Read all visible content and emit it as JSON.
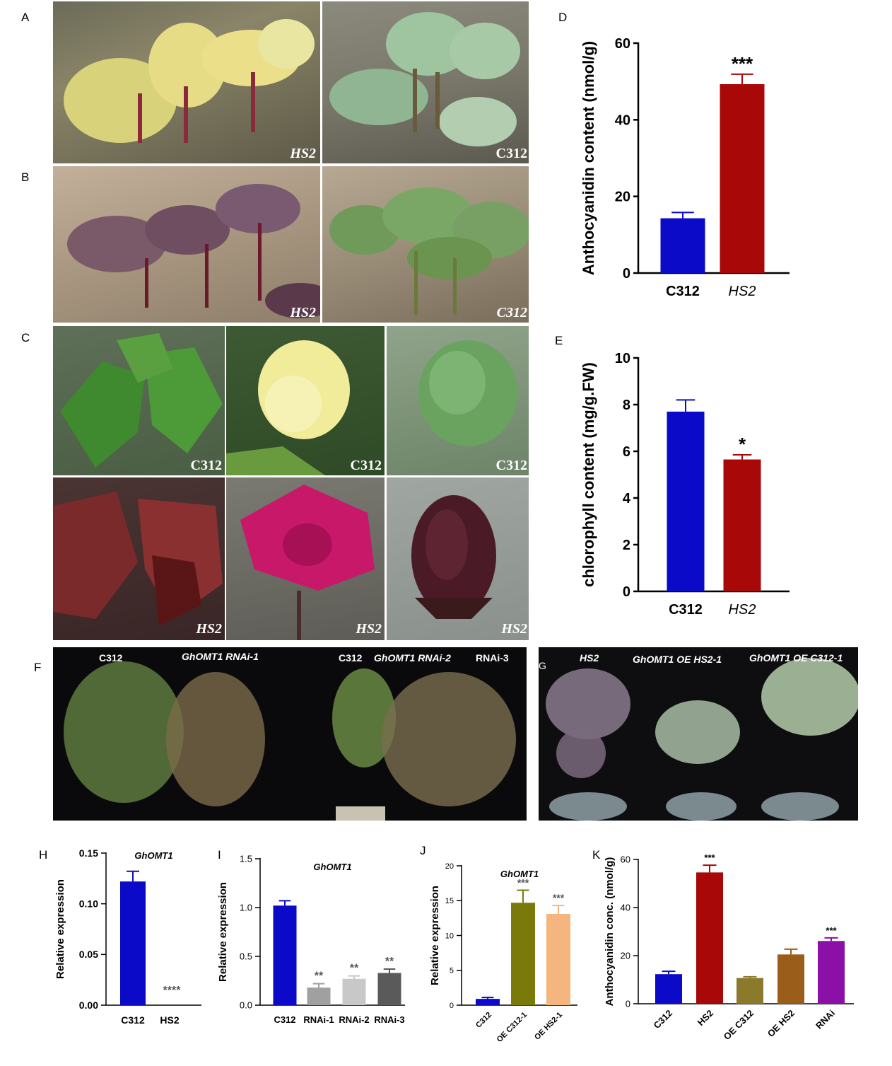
{
  "panels": {
    "A": "A",
    "B": "B",
    "C": "C",
    "D": "D",
    "E": "E",
    "F": "F",
    "G": "G",
    "H": "H",
    "I": "I",
    "J": "J",
    "K": "K"
  },
  "photos": {
    "A_left_caption": "HS2",
    "A_right_caption": "C312",
    "B_left_caption": "HS2",
    "B_right_caption": "C312",
    "C_top": [
      "C312",
      "C312",
      "C312"
    ],
    "C_bottom": [
      "HS2",
      "HS2",
      "HS2"
    ],
    "F_labels": [
      "C312",
      "GhOMT1 RNAi-1",
      "C312",
      "GhOMT1 RNAi-2",
      "RNAi-3"
    ],
    "G_labels": [
      "HS2",
      "GhOMT1 OE HS2-1",
      "GhOMT1 OE C312-1"
    ]
  },
  "colors": {
    "blue": "#0a0ac8",
    "darkred": "#a80808",
    "lightgray": "#c8c8c8",
    "midgray": "#a0a0a0",
    "darkgray": "#5a5a5a",
    "olive": "#7a7a0a",
    "peach": "#f4b57e",
    "khaki": "#8a7a2a",
    "brown": "#9a5e1a",
    "purple": "#8a10a8"
  },
  "chart_data": [
    {
      "id": "D",
      "type": "bar",
      "title": "",
      "ylabel": "Anthocyanidin content (nmol/g)",
      "categories": [
        "C312",
        "HS2"
      ],
      "values": [
        14.3,
        49.3
      ],
      "errors": [
        1.5,
        2.6
      ],
      "significance": [
        "",
        "***"
      ],
      "ylim": [
        0,
        60
      ],
      "yticks": [
        "0",
        "20",
        "40",
        "60"
      ]
    },
    {
      "id": "E",
      "type": "bar",
      "title": "",
      "ylabel": "chlorophyll content (mg/g.FW)",
      "categories": [
        "C312",
        "HS2"
      ],
      "values": [
        7.7,
        5.65
      ],
      "errors": [
        0.5,
        0.2
      ],
      "significance": [
        "",
        "*"
      ],
      "ylim": [
        0,
        10
      ],
      "yticks": [
        "0",
        "2",
        "4",
        "6",
        "8",
        "10"
      ]
    },
    {
      "id": "H",
      "type": "bar",
      "title": "GhOMT1",
      "ylabel": "Relative expression",
      "categories": [
        "C312",
        "HS2"
      ],
      "values": [
        0.122,
        0.0
      ],
      "errors": [
        0.01,
        0
      ],
      "significance": [
        "",
        "****"
      ],
      "ylim": [
        0,
        0.15
      ],
      "yticks": [
        "0.00",
        "0.05",
        "0.10",
        "0.15"
      ]
    },
    {
      "id": "I",
      "type": "bar",
      "title": "GhOMT1",
      "ylabel": "Relative expression",
      "categories": [
        "C312",
        "RNAi-1",
        "RNAi-2",
        "RNAi-3"
      ],
      "values": [
        1.02,
        0.18,
        0.27,
        0.33
      ],
      "errors": [
        0.05,
        0.04,
        0.03,
        0.04
      ],
      "significance": [
        "",
        "**",
        "**",
        "**"
      ],
      "ylim": [
        0,
        1.5
      ],
      "yticks": [
        "0.0",
        "0.5",
        "1.0",
        "1.5"
      ]
    },
    {
      "id": "J",
      "type": "bar",
      "title": "GhOMT1",
      "ylabel": "Relative expression",
      "categories": [
        "C312",
        "OE C312-1",
        "OE HS2-1"
      ],
      "values": [
        0.9,
        14.7,
        13.1
      ],
      "errors": [
        0.2,
        1.8,
        1.2
      ],
      "significance": [
        "",
        "***",
        "***"
      ],
      "ylim": [
        0,
        20
      ],
      "yticks": [
        "0",
        "5",
        "10",
        "15",
        "20"
      ]
    },
    {
      "id": "K",
      "type": "bar",
      "title": "",
      "ylabel": "Anthocyanidin conc. (nmol/g)",
      "categories": [
        "C312",
        "HS2",
        "OE C312",
        "OE HS2",
        "RNAi"
      ],
      "values": [
        12.3,
        54.6,
        10.7,
        20.5,
        26.1
      ],
      "errors": [
        1.2,
        3.0,
        0.5,
        2.2,
        1.3
      ],
      "significance": [
        "",
        "***",
        "",
        "",
        "***"
      ],
      "ylim": [
        0,
        60
      ],
      "yticks": [
        "0",
        "20",
        "40",
        "60"
      ]
    }
  ]
}
